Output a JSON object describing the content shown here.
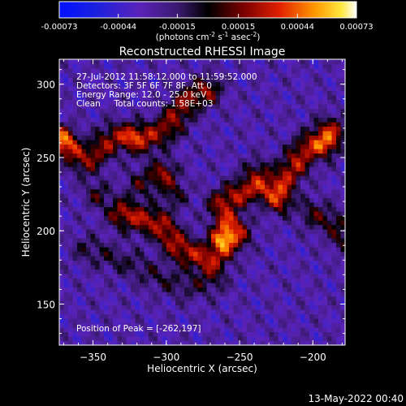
{
  "chart_data": {
    "type": "heatmap",
    "title": "Reconstructed RHESSI Image",
    "xlabel": "Heliocentric X (arcsec)",
    "ylabel": "Heliocentric Y (arcsec)",
    "xlim": [
      -373,
      -178
    ],
    "ylim": [
      122,
      317
    ],
    "x_ticks": [
      -350,
      -300,
      -250,
      -200
    ],
    "y_ticks": [
      150,
      200,
      250,
      300
    ],
    "colorbar": {
      "range": [
        -0.00073,
        0.00073
      ],
      "tick_values": [
        -0.00073,
        -0.00044,
        -0.00015,
        0.00015,
        0.00044,
        0.00073
      ],
      "tick_labels": [
        "-0.00073",
        "-0.00044",
        "-0.00015",
        "0.00015",
        "0.00044",
        "0.00073"
      ],
      "unit_label": "(photons cm",
      "unit_exp1": "-2",
      "unit_mid": " s",
      "unit_exp2": "-1",
      "unit_tail": " asec",
      "unit_exp3": "-2",
      "unit_close": ")"
    },
    "annotations": [
      "27-Jul-2012 11:58:12.000 to 11:59:52.000",
      "Detectors: 3F 5F 6F 7F 8F, Att 0",
      "Energy Range: 12.0 - 25.0 keV",
      "Clean     Total counts: 1.58E+03"
    ],
    "peak_label": "Position of Peak = [-262,197]",
    "peak": [
      -262,
      197
    ],
    "ridges": [
      {
        "points": [
          [
            -373,
            262
          ],
          [
            -355,
            248
          ],
          [
            -335,
            264
          ],
          [
            -315,
            262
          ],
          [
            -300,
            270
          ],
          [
            -285,
            290
          ],
          [
            -272,
            296
          ]
        ],
        "amp": 0.00048
      },
      {
        "points": [
          [
            -330,
            212
          ],
          [
            -305,
            205
          ],
          [
            -290,
            188
          ],
          [
            -270,
            180
          ],
          [
            -252,
            198
          ],
          [
            -262,
            218
          ],
          [
            -245,
            228
          ],
          [
            -222,
            232
          ],
          [
            -205,
            255
          ],
          [
            -188,
            268
          ]
        ],
        "amp": 0.00055
      },
      {
        "points": [
          [
            -355,
            188
          ],
          [
            -325,
            178
          ],
          [
            -305,
            168
          ],
          [
            -285,
            162
          ],
          [
            -268,
            166
          ]
        ],
        "amp": 0.00022
      },
      {
        "points": [
          [
            -318,
            232
          ],
          [
            -302,
            238
          ],
          [
            -295,
            226
          ]
        ],
        "amp": 0.0003
      },
      {
        "points": [
          [
            -200,
            212
          ],
          [
            -185,
            205
          ],
          [
            -178,
            195
          ]
        ],
        "amp": 0.00032
      }
    ],
    "hotspots": [
      {
        "x": -262,
        "y": 197,
        "amp": 0.00073
      },
      {
        "x": -223,
        "y": 220,
        "amp": 0.00068
      },
      {
        "x": -347,
        "y": 225,
        "amp": 0.00045
      },
      {
        "x": -370,
        "y": 262,
        "amp": 0.0005
      },
      {
        "x": -190,
        "y": 258,
        "amp": 0.00048
      },
      {
        "x": -238,
        "y": 242,
        "amp": 0.0004
      },
      {
        "x": -322,
        "y": 266,
        "amp": 0.00038
      },
      {
        "x": -302,
        "y": 240,
        "amp": 0.0003
      }
    ]
  },
  "timestamp": "13-May-2022 00:40"
}
